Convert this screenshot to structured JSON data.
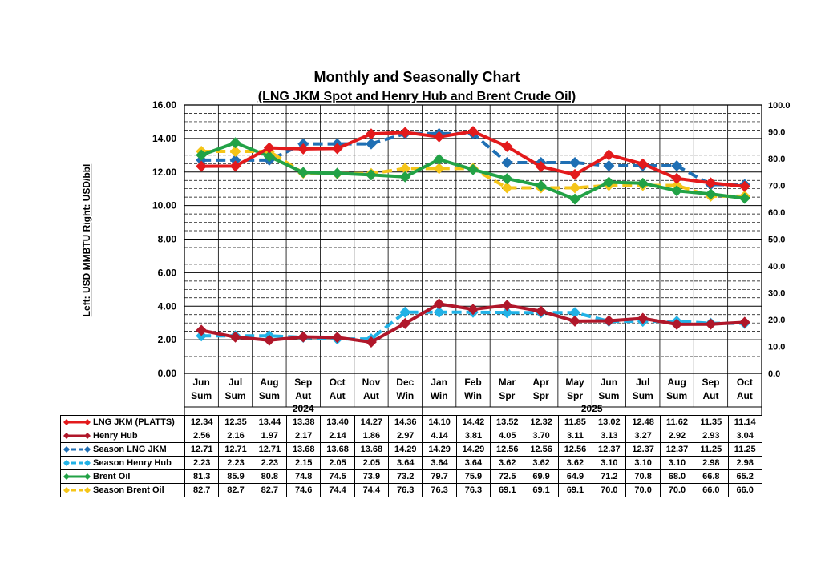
{
  "chart_data": {
    "type": "line",
    "title": "Monthly and Seasonally Chart",
    "subtitle": "(LNG JKM Spot and Henry Hub and Brent Crude Oil)",
    "ylabel": "Left: USD MMBTU Right: USD/bbl",
    "ylim_left": [
      0,
      16
    ],
    "ylim_right": [
      0,
      100
    ],
    "left_ticks": [
      "0.00",
      "2.00",
      "4.00",
      "6.00",
      "8.00",
      "10.00",
      "12.00",
      "14.00",
      "16.00"
    ],
    "right_ticks": [
      "0.0",
      "10.0",
      "20.0",
      "30.0",
      "40.0",
      "50.0",
      "60.0",
      "70.0",
      "80.0",
      "90.0",
      "100.0"
    ],
    "months": [
      "Jun",
      "Jul",
      "Aug",
      "Sep",
      "Oct",
      "Nov",
      "Dec",
      "Jan",
      "Feb",
      "Mar",
      "Apr",
      "May",
      "Jun",
      "Jul",
      "Aug",
      "Sep",
      "Oct"
    ],
    "seasons": [
      "Sum",
      "Sum",
      "Sum",
      "Aut",
      "Aut",
      "Aut",
      "Win",
      "Win",
      "Win",
      "Spr",
      "Spr",
      "Spr",
      "Sum",
      "Sum",
      "Sum",
      "Aut",
      "Aut"
    ],
    "years": [
      {
        "label": "2024",
        "start": 0,
        "end": 6
      },
      {
        "label": "2025",
        "start": 7,
        "end": 16
      }
    ],
    "series": [
      {
        "name": "LNG JKM (PLATTS)",
        "axis": "left",
        "style": "solid",
        "color": "#e31a1c",
        "values": [
          "12.34",
          "12.35",
          "13.44",
          "13.38",
          "13.40",
          "14.27",
          "14.36",
          "14.10",
          "14.42",
          "13.52",
          "12.32",
          "11.85",
          "13.02",
          "12.48",
          "11.62",
          "11.35",
          "11.14"
        ]
      },
      {
        "name": "Henry Hub",
        "axis": "left",
        "style": "solid",
        "color": "#b0172a",
        "values": [
          "2.56",
          "2.16",
          "1.97",
          "2.17",
          "2.14",
          "1.86",
          "2.97",
          "4.14",
          "3.81",
          "4.05",
          "3.70",
          "3.11",
          "3.13",
          "3.27",
          "2.92",
          "2.93",
          "3.04"
        ]
      },
      {
        "name": "Season LNG JKM",
        "axis": "left",
        "style": "dashed",
        "color": "#1f6fb4",
        "values": [
          "12.71",
          "12.71",
          "12.71",
          "13.68",
          "13.68",
          "13.68",
          "14.29",
          "14.29",
          "14.29",
          "12.56",
          "12.56",
          "12.56",
          "12.37",
          "12.37",
          "12.37",
          "11.25",
          "11.25"
        ]
      },
      {
        "name": "Season Henry Hub",
        "axis": "left",
        "style": "dashed",
        "color": "#21b2e6",
        "values": [
          "2.23",
          "2.23",
          "2.23",
          "2.15",
          "2.05",
          "2.05",
          "3.64",
          "3.64",
          "3.64",
          "3.62",
          "3.62",
          "3.62",
          "3.10",
          "3.10",
          "3.10",
          "2.98",
          "2.98"
        ]
      },
      {
        "name": "Brent Oil",
        "axis": "right",
        "style": "solid",
        "color": "#22a246",
        "values": [
          "81.3",
          "85.9",
          "80.8",
          "74.8",
          "74.5",
          "73.9",
          "73.2",
          "79.7",
          "75.9",
          "72.5",
          "69.9",
          "64.9",
          "71.2",
          "70.8",
          "68.0",
          "66.8",
          "65.2"
        ]
      },
      {
        "name": "Season Brent Oil",
        "axis": "right",
        "style": "dashed",
        "color": "#f5c518",
        "values": [
          "82.7",
          "82.7",
          "82.7",
          "74.6",
          "74.4",
          "74.4",
          "76.3",
          "76.3",
          "76.3",
          "69.1",
          "69.1",
          "69.1",
          "70.0",
          "70.0",
          "70.0",
          "66.0",
          "66.0"
        ]
      }
    ]
  }
}
